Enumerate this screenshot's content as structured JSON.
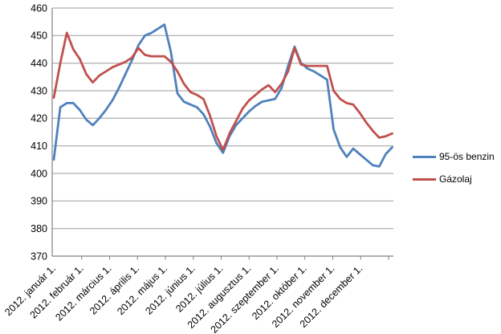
{
  "chart_data": {
    "type": "line",
    "title": "",
    "interval": "weekly",
    "grid": "horizontal",
    "legend_position": "right",
    "x_tick_labels": [
      "2012. január 1.",
      "2012. február 1.",
      "2012. március 1.",
      "2012. április 1.",
      "2012. május 1.",
      "2012. június 1.",
      "2012. július 1.",
      "2012. augusztus 1.",
      "2012. szeptember 1.",
      "2012. október 1.",
      "2012. november 1.",
      "2012. december 1."
    ],
    "y_axis": {
      "min": 370,
      "max": 460,
      "step": 10,
      "tick_labels": [
        "370",
        "380",
        "390",
        "400",
        "410",
        "420",
        "430",
        "440",
        "450",
        "460"
      ]
    },
    "series": [
      {
        "name": "95-ös benzin",
        "color": "#4F81BD",
        "values": [
          405,
          424,
          425.5,
          425.5,
          423,
          419.5,
          417.5,
          420,
          423,
          426.5,
          431,
          436,
          441,
          446.5,
          450,
          451,
          452.5,
          454,
          444,
          429,
          426,
          425,
          424,
          421.5,
          417,
          411,
          407.5,
          413.5,
          417.5,
          420,
          422.5,
          424.5,
          426,
          426.5,
          427,
          431,
          439,
          446,
          440,
          438,
          437,
          435.5,
          434,
          416,
          409.5,
          406,
          409,
          407,
          405,
          403,
          402.5,
          407,
          409.5
        ]
      },
      {
        "name": "Gázolaj",
        "color": "#C0504D",
        "values": [
          427.5,
          440,
          451,
          445,
          441.5,
          436,
          433,
          435.5,
          437,
          438.5,
          439.5,
          440.5,
          442,
          445.5,
          443,
          442.5,
          442.5,
          442.5,
          440.5,
          437,
          432.5,
          429.5,
          428.5,
          427,
          421,
          413.5,
          408.5,
          414.5,
          419,
          423.5,
          426.5,
          428.5,
          430.5,
          432,
          429.5,
          432.5,
          437,
          445.5,
          439.5,
          439,
          439,
          439,
          439,
          430,
          427,
          425.5,
          425,
          422,
          418.5,
          415.5,
          413,
          413.5,
          414.5
        ]
      }
    ],
    "colors": {
      "gridline": "#9C9C9C",
      "axis": "#808080",
      "text": "#000000"
    }
  }
}
